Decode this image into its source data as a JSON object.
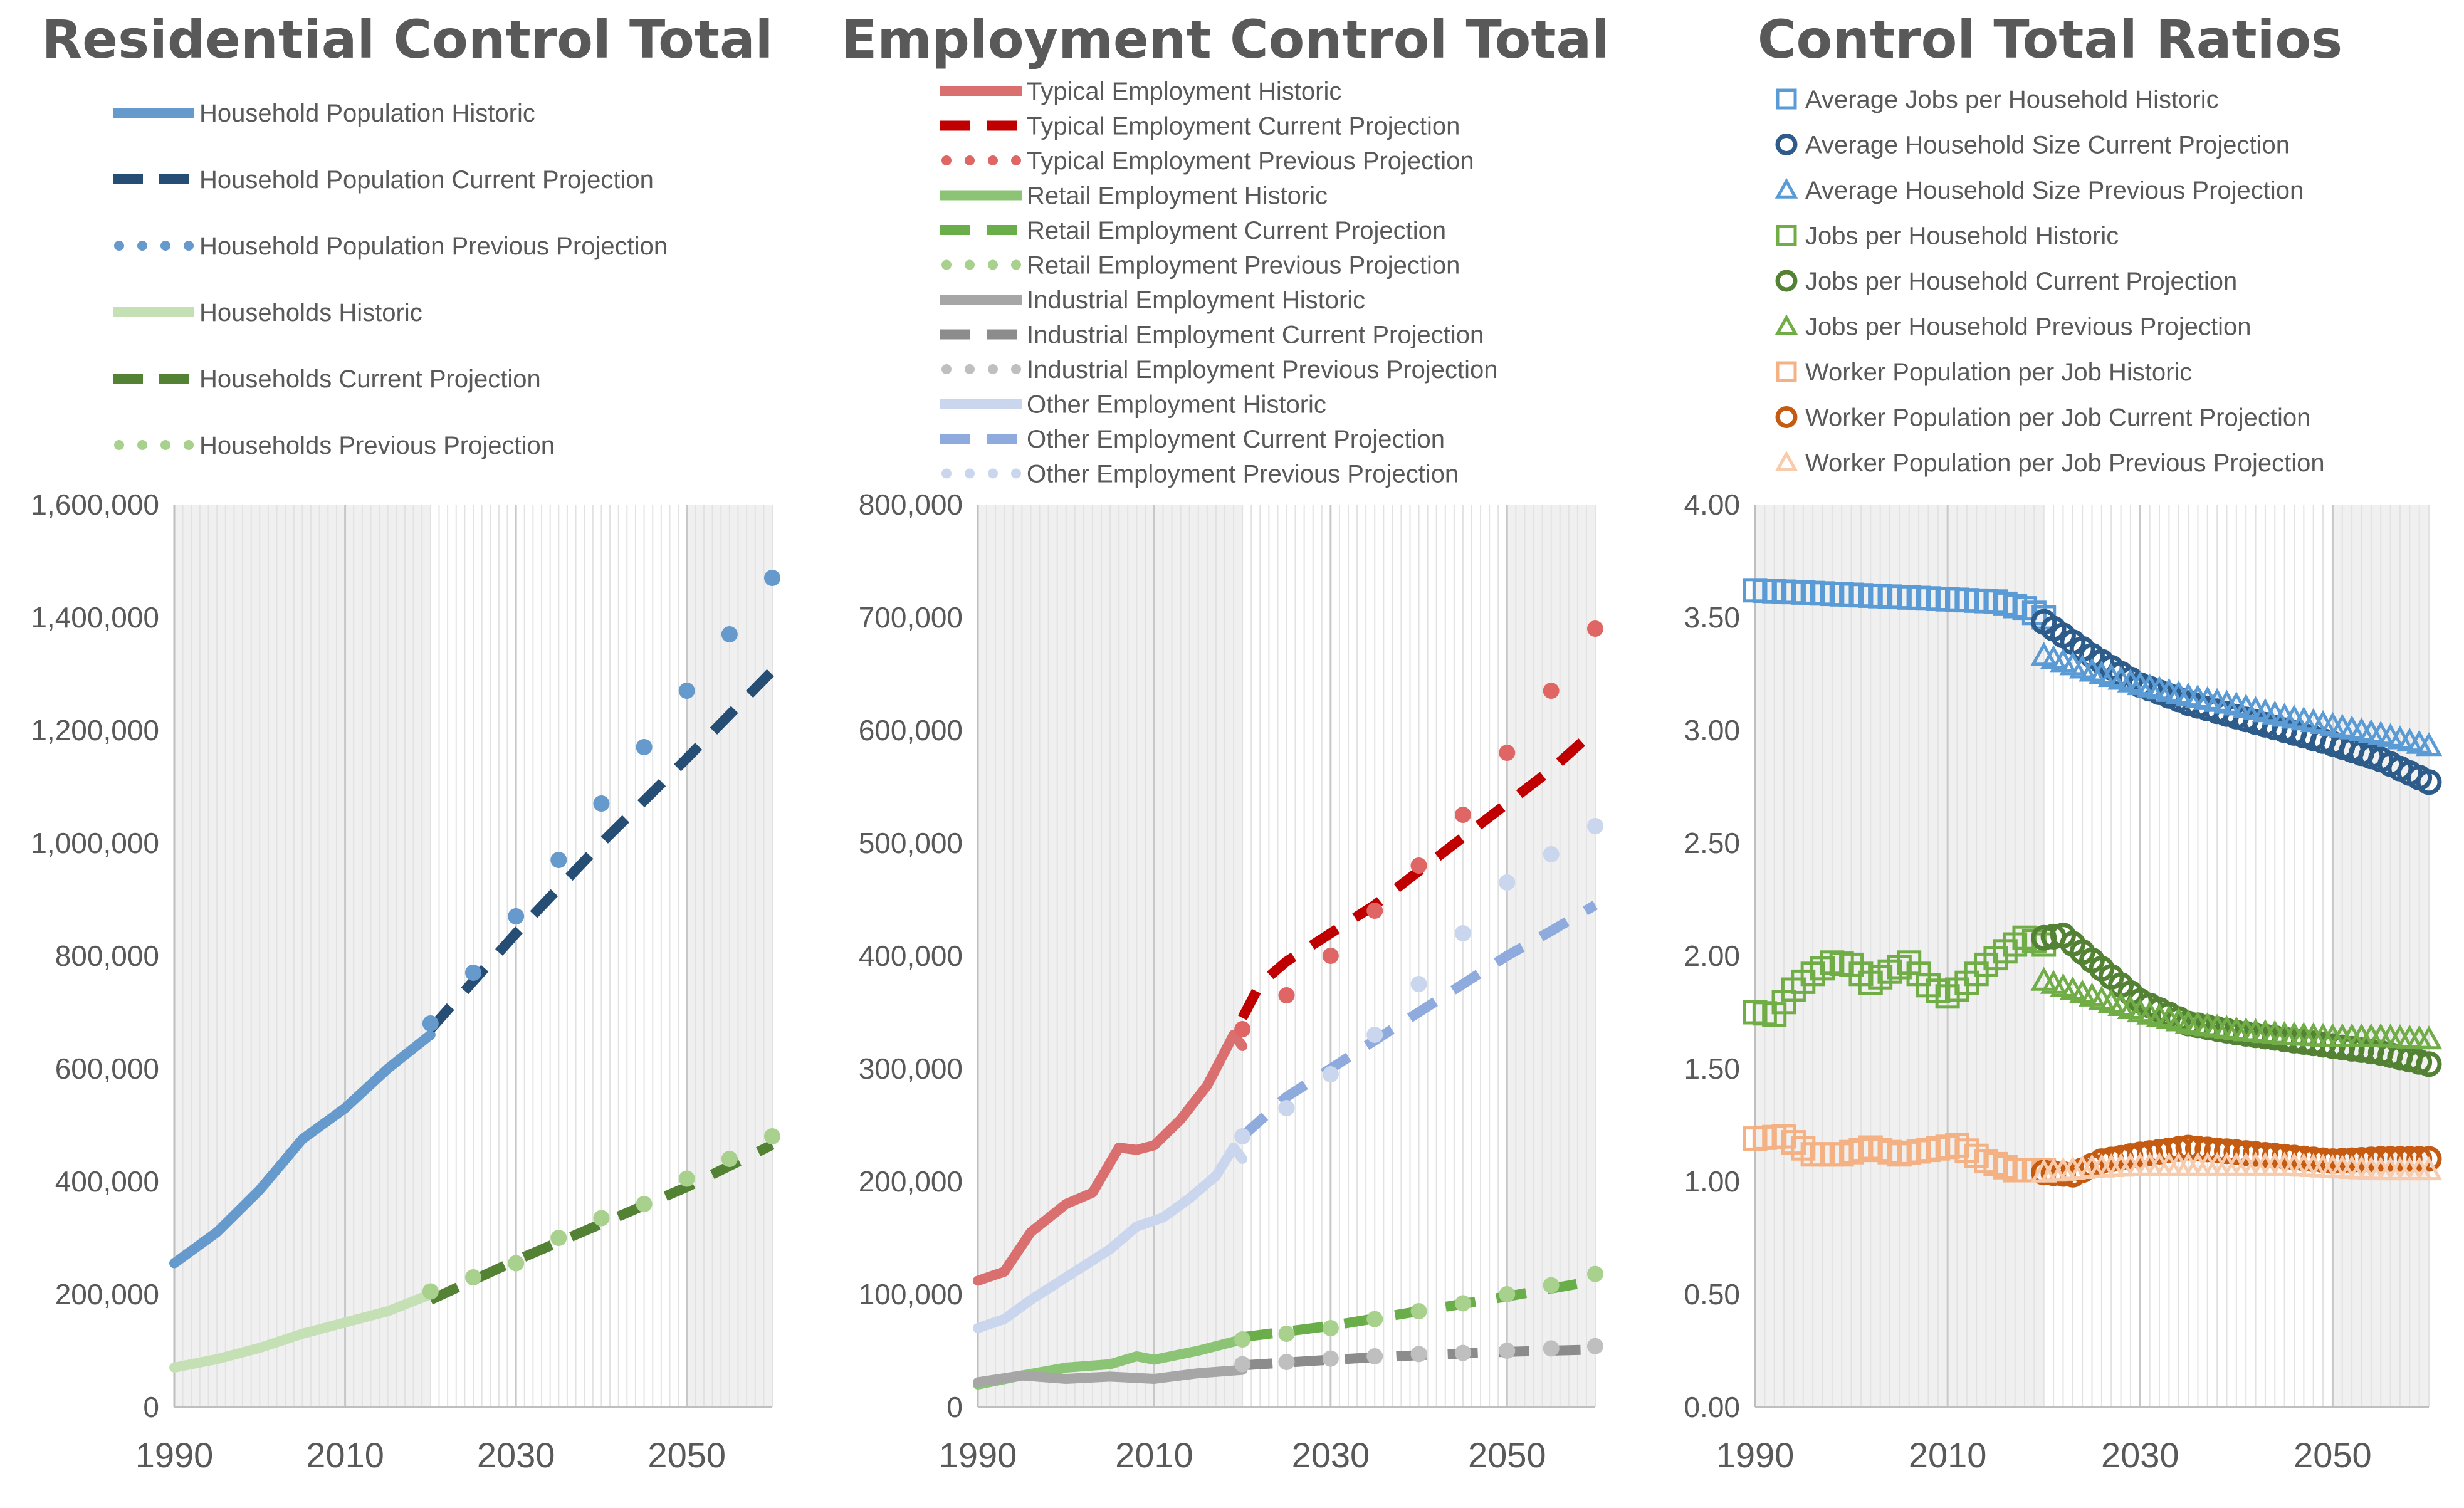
{
  "charts": [
    {
      "title": "Residential Control Total",
      "type": "line",
      "xlim": [
        1990,
        2060
      ],
      "ylim": [
        0,
        1600000
      ],
      "xticks": [
        1990,
        2010,
        2030,
        2050
      ],
      "yticks": [
        0,
        200000,
        400000,
        600000,
        800000,
        1000000,
        1200000,
        1400000,
        1600000
      ],
      "ytick_labels": [
        "0",
        "200,000",
        "400,000",
        "600,000",
        "800,000",
        "1,000,000",
        "1,200,000",
        "1,400,000",
        "1,600,000"
      ],
      "shaded_ranges": [
        [
          1990,
          2020
        ],
        [
          2050,
          2060
        ]
      ],
      "legend_position": "top",
      "series": [
        {
          "name": "Household Population Historic",
          "style": "solid",
          "color": "#6699CC",
          "x": [
            1990,
            1995,
            2000,
            2005,
            2010,
            2015,
            2020
          ],
          "y": [
            255000,
            310000,
            385000,
            475000,
            530000,
            600000,
            660000
          ]
        },
        {
          "name": "Household Population Current Projection",
          "style": "dash",
          "color": "#264D73",
          "x": [
            2020,
            2030,
            2040,
            2050,
            2060
          ],
          "y": [
            670000,
            840000,
            1000000,
            1150000,
            1305000
          ]
        },
        {
          "name": "Household Population Previous Projection",
          "style": "dot",
          "color": "#6699CC",
          "x": [
            2020,
            2025,
            2030,
            2035,
            2040,
            2045,
            2050,
            2055,
            2060
          ],
          "y": [
            680000,
            770000,
            870000,
            970000,
            1070000,
            1170000,
            1270000,
            1370000,
            1470000
          ]
        },
        {
          "name": "Households Historic",
          "style": "solid",
          "color": "#C5E0B4",
          "x": [
            1990,
            1995,
            2000,
            2005,
            2010,
            2015,
            2020
          ],
          "y": [
            70000,
            85000,
            105000,
            130000,
            150000,
            170000,
            200000
          ]
        },
        {
          "name": "Households Current Projection",
          "style": "dash",
          "color": "#548235",
          "x": [
            2020,
            2030,
            2040,
            2050,
            2060
          ],
          "y": [
            190000,
            260000,
            325000,
            390000,
            465000
          ]
        },
        {
          "name": "Households Previous Projection",
          "style": "dot",
          "color": "#A9D18E",
          "x": [
            2020,
            2025,
            2030,
            2035,
            2040,
            2045,
            2050,
            2055,
            2060
          ],
          "y": [
            205000,
            230000,
            255000,
            300000,
            335000,
            360000,
            405000,
            440000,
            480000
          ]
        }
      ]
    },
    {
      "title": "Employment Control Total",
      "type": "line",
      "xlim": [
        1990,
        2060
      ],
      "ylim": [
        0,
        800000
      ],
      "xticks": [
        1990,
        2010,
        2030,
        2050
      ],
      "yticks": [
        0,
        100000,
        200000,
        300000,
        400000,
        500000,
        600000,
        700000,
        800000
      ],
      "ytick_labels": [
        "0",
        "100,000",
        "200,000",
        "300,000",
        "400,000",
        "500,000",
        "600,000",
        "700,000",
        "800,000"
      ],
      "shaded_ranges": [
        [
          1990,
          2020
        ],
        [
          2050,
          2060
        ]
      ],
      "legend_position": "top",
      "series": [
        {
          "name": "Typical Employment Historic",
          "style": "solid",
          "color": "#D9706F",
          "x": [
            1990,
            1993,
            1996,
            2000,
            2003,
            2006,
            2008,
            2010,
            2013,
            2016,
            2019,
            2020
          ],
          "y": [
            112000,
            120000,
            155000,
            180000,
            190000,
            230000,
            228000,
            232000,
            255000,
            285000,
            330000,
            320000
          ]
        },
        {
          "name": "Typical Employment Current Projection",
          "style": "dash",
          "color": "#C00000",
          "x": [
            2020,
            2022,
            2025,
            2030,
            2035,
            2040,
            2045,
            2050,
            2055,
            2060
          ],
          "y": [
            345000,
            375000,
            395000,
            420000,
            445000,
            475000,
            505000,
            535000,
            565000,
            600000
          ]
        },
        {
          "name": "Typical Employment Previous Projection",
          "style": "dot",
          "color": "#E06666",
          "x": [
            2020,
            2025,
            2030,
            2035,
            2040,
            2045,
            2050,
            2055,
            2060
          ],
          "y": [
            335000,
            365000,
            400000,
            440000,
            480000,
            525000,
            580000,
            635000,
            690000
          ]
        },
        {
          "name": "Retail Employment Historic",
          "style": "solid",
          "color": "#8CC475",
          "x": [
            1990,
            1995,
            2000,
            2005,
            2008,
            2010,
            2015,
            2020
          ],
          "y": [
            20000,
            28000,
            35000,
            38000,
            45000,
            42000,
            50000,
            60000
          ]
        },
        {
          "name": "Retail Employment Current Projection",
          "style": "dash",
          "color": "#6AAE4A",
          "x": [
            2020,
            2030,
            2040,
            2050,
            2060
          ],
          "y": [
            62000,
            72000,
            85000,
            98000,
            112000
          ]
        },
        {
          "name": "Retail Employment Previous Projection",
          "style": "dot",
          "color": "#A9D18E",
          "x": [
            2020,
            2025,
            2030,
            2035,
            2040,
            2045,
            2050,
            2055,
            2060
          ],
          "y": [
            60000,
            65000,
            70000,
            78000,
            85000,
            92000,
            100000,
            108000,
            118000
          ]
        },
        {
          "name": "Industrial Employment Historic",
          "style": "solid",
          "color": "#A6A6A6",
          "x": [
            1990,
            1995,
            2000,
            2005,
            2010,
            2015,
            2020
          ],
          "y": [
            22000,
            28000,
            25000,
            27000,
            25000,
            30000,
            33000
          ]
        },
        {
          "name": "Industrial Employment Current Projection",
          "style": "dash",
          "color": "#8C8C8C",
          "x": [
            2020,
            2030,
            2040,
            2050,
            2060
          ],
          "y": [
            37000,
            42000,
            46000,
            49000,
            51000
          ]
        },
        {
          "name": "Industrial Employment Previous Projection",
          "style": "dot",
          "color": "#BFBFBF",
          "x": [
            2020,
            2025,
            2030,
            2035,
            2040,
            2045,
            2050,
            2055,
            2060
          ],
          "y": [
            38000,
            40000,
            43000,
            45000,
            47000,
            48000,
            50000,
            52000,
            54000
          ]
        },
        {
          "name": "Other Employment Historic",
          "style": "solid",
          "color": "#C9D6EE",
          "x": [
            1990,
            1993,
            1996,
            1999,
            2002,
            2005,
            2008,
            2011,
            2014,
            2017,
            2019,
            2020
          ],
          "y": [
            70000,
            78000,
            95000,
            110000,
            125000,
            140000,
            160000,
            168000,
            185000,
            205000,
            230000,
            220000
          ]
        },
        {
          "name": "Other Employment Current Projection",
          "style": "dash",
          "color": "#8FAADC",
          "x": [
            2020,
            2025,
            2030,
            2035,
            2040,
            2045,
            2050,
            2055,
            2060
          ],
          "y": [
            240000,
            275000,
            300000,
            325000,
            350000,
            375000,
            400000,
            422000,
            445000
          ]
        },
        {
          "name": "Other Employment Previous Projection",
          "style": "dot",
          "color": "#C9D6EE",
          "x": [
            2020,
            2025,
            2030,
            2035,
            2040,
            2045,
            2050,
            2055,
            2060
          ],
          "y": [
            240000,
            265000,
            295000,
            330000,
            375000,
            420000,
            465000,
            490000,
            515000
          ]
        }
      ]
    },
    {
      "title": "Control Total Ratios",
      "type": "scatter",
      "xlim": [
        1990,
        2060
      ],
      "ylim": [
        0,
        4
      ],
      "xticks": [
        1990,
        2010,
        2030,
        2050
      ],
      "yticks": [
        0,
        0.5,
        1,
        1.5,
        2,
        2.5,
        3,
        3.5,
        4
      ],
      "ytick_labels": [
        "0.00",
        "0.50",
        "1.00",
        "1.50",
        "2.00",
        "2.50",
        "3.00",
        "3.50",
        "4.00"
      ],
      "shaded_ranges": [
        [
          1990,
          2020
        ],
        [
          2050,
          2060
        ]
      ],
      "legend_position": "top",
      "series": [
        {
          "name": "Average Jobs per Household Historic",
          "marker": "square",
          "color": "#5B9BD5",
          "x": [
            1990,
            1995,
            2000,
            2005,
            2010,
            2015,
            2018,
            2020
          ],
          "y": [
            3.62,
            3.61,
            3.6,
            3.59,
            3.58,
            3.57,
            3.54,
            3.5
          ]
        },
        {
          "name": "Average Household Size Current Projection",
          "marker": "circle",
          "color": "#2E5C8A",
          "x": [
            2020,
            2022,
            2025,
            2028,
            2030,
            2035,
            2040,
            2045,
            2050,
            2055,
            2060
          ],
          "y": [
            3.48,
            3.42,
            3.33,
            3.25,
            3.2,
            3.12,
            3.06,
            3.0,
            2.94,
            2.87,
            2.77
          ]
        },
        {
          "name": "Average Household Size Previous Projection",
          "marker": "triangle",
          "color": "#5B9BD5",
          "x": [
            2020,
            2025,
            2030,
            2035,
            2040,
            2045,
            2050,
            2055,
            2060
          ],
          "y": [
            3.33,
            3.26,
            3.2,
            3.15,
            3.11,
            3.06,
            3.02,
            2.98,
            2.93
          ]
        },
        {
          "name": "Jobs per Household Historic",
          "marker": "square",
          "color": "#70AD47",
          "x": [
            1990,
            1992,
            1994,
            1996,
            1998,
            2000,
            2002,
            2004,
            2006,
            2008,
            2010,
            2012,
            2014,
            2016,
            2018,
            2020
          ],
          "y": [
            1.75,
            1.74,
            1.85,
            1.92,
            1.97,
            1.96,
            1.88,
            1.93,
            1.97,
            1.87,
            1.82,
            1.88,
            1.96,
            2.02,
            2.08,
            2.05
          ]
        },
        {
          "name": "Jobs per Household Current Projection",
          "marker": "circle",
          "color": "#548235",
          "x": [
            2020,
            2022,
            2025,
            2028,
            2030,
            2035,
            2040,
            2045,
            2050,
            2055,
            2060
          ],
          "y": [
            2.08,
            2.09,
            1.98,
            1.87,
            1.8,
            1.7,
            1.66,
            1.63,
            1.6,
            1.57,
            1.52
          ]
        },
        {
          "name": "Jobs per Household Previous Projection",
          "marker": "triangle",
          "color": "#70AD47",
          "x": [
            2020,
            2025,
            2030,
            2035,
            2040,
            2045,
            2050,
            2055,
            2060
          ],
          "y": [
            1.89,
            1.82,
            1.75,
            1.7,
            1.67,
            1.65,
            1.64,
            1.64,
            1.63
          ]
        },
        {
          "name": "Worker Population per Job Historic",
          "marker": "square",
          "color": "#F4B183",
          "x": [
            1990,
            1993,
            1996,
            1999,
            2002,
            2005,
            2008,
            2011,
            2014,
            2017,
            2020
          ],
          "y": [
            1.19,
            1.2,
            1.12,
            1.12,
            1.15,
            1.12,
            1.14,
            1.16,
            1.09,
            1.05,
            1.05
          ]
        },
        {
          "name": "Worker Population per Job Current Projection",
          "marker": "circle",
          "color": "#C55A11",
          "x": [
            2020,
            2023,
            2026,
            2030,
            2035,
            2040,
            2045,
            2050,
            2055,
            2060
          ],
          "y": [
            1.04,
            1.03,
            1.09,
            1.12,
            1.15,
            1.13,
            1.11,
            1.09,
            1.1,
            1.1
          ]
        },
        {
          "name": "Worker Population per Job Previous Projection",
          "marker": "triangle",
          "color": "#F8CBAD",
          "x": [
            2020,
            2025,
            2030,
            2035,
            2040,
            2045,
            2050,
            2055,
            2060
          ],
          "y": [
            1.04,
            1.06,
            1.07,
            1.07,
            1.07,
            1.07,
            1.06,
            1.05,
            1.05
          ]
        }
      ]
    }
  ]
}
